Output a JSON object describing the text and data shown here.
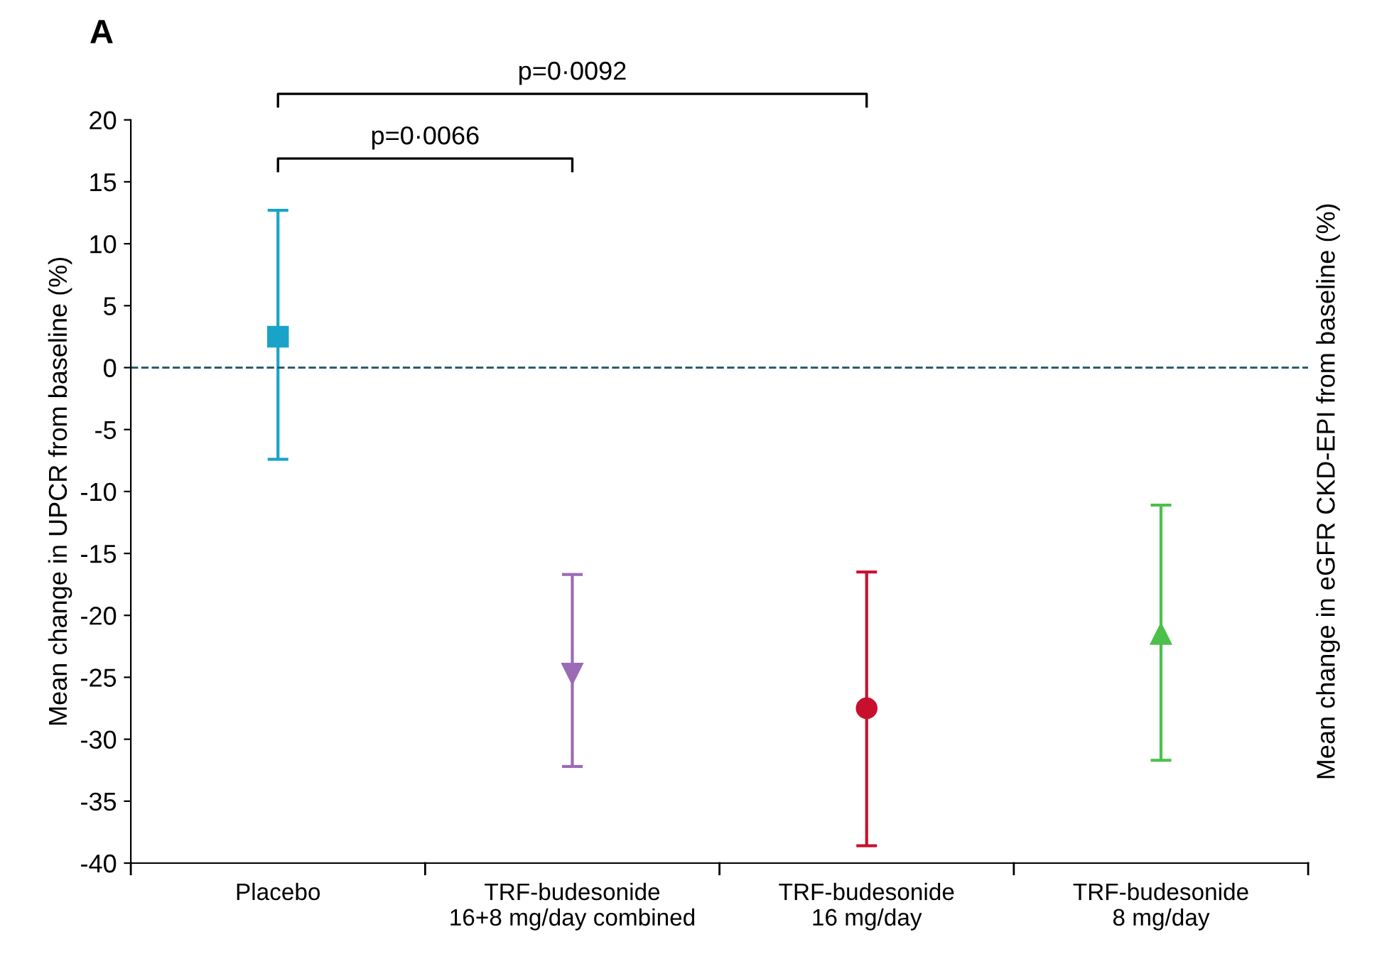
{
  "chart_data": {
    "type": "scatter",
    "title": "A",
    "ylabel": "Mean change in UPCR from baseline (%)",
    "y2label": "Mean change in eGFR CKD-EPI from baseline (%)",
    "categories": [
      "Placebo",
      "TRF-budesonide\n16+8 mg/day combined",
      "TRF-budesonide\n16 mg/day",
      "TRF-budesonide\n8 mg/day"
    ],
    "series": [
      {
        "color": "#1aa3c8",
        "marker": "square",
        "values": [
          2.5,
          null,
          null,
          null
        ],
        "errors": [
          [
            -7.4,
            12.7
          ],
          null,
          null,
          null
        ]
      },
      {
        "color": "#9b6bb5",
        "marker": "triangle_down",
        "values": [
          null,
          -24.7,
          null,
          null
        ],
        "errors": [
          null,
          [
            -32.2,
            -16.7
          ],
          null,
          null
        ]
      },
      {
        "color": "#c8102e",
        "marker": "circle",
        "values": [
          null,
          null,
          -27.5,
          null
        ],
        "errors": [
          null,
          null,
          [
            -38.6,
            -16.5
          ],
          null
        ]
      },
      {
        "color": "#4cc04a",
        "marker": "triangle",
        "values": [
          null,
          null,
          null,
          -21.5
        ],
        "errors": [
          null,
          null,
          null,
          [
            -31.7,
            -11.1
          ]
        ]
      }
    ],
    "ylim": [
      -40,
      20
    ],
    "yticks": [
      -40,
      -35,
      -30,
      -25,
      -20,
      -15,
      -10,
      -5,
      0,
      5,
      10,
      15,
      20
    ],
    "ref_lines": [
      {
        "axis": "y",
        "value": 0,
        "color": "#2a5f6e",
        "line_style": "dashed"
      }
    ],
    "annotations": [
      "p=0·0066",
      "p=0·0092"
    ],
    "grid": false,
    "legend": false
  }
}
